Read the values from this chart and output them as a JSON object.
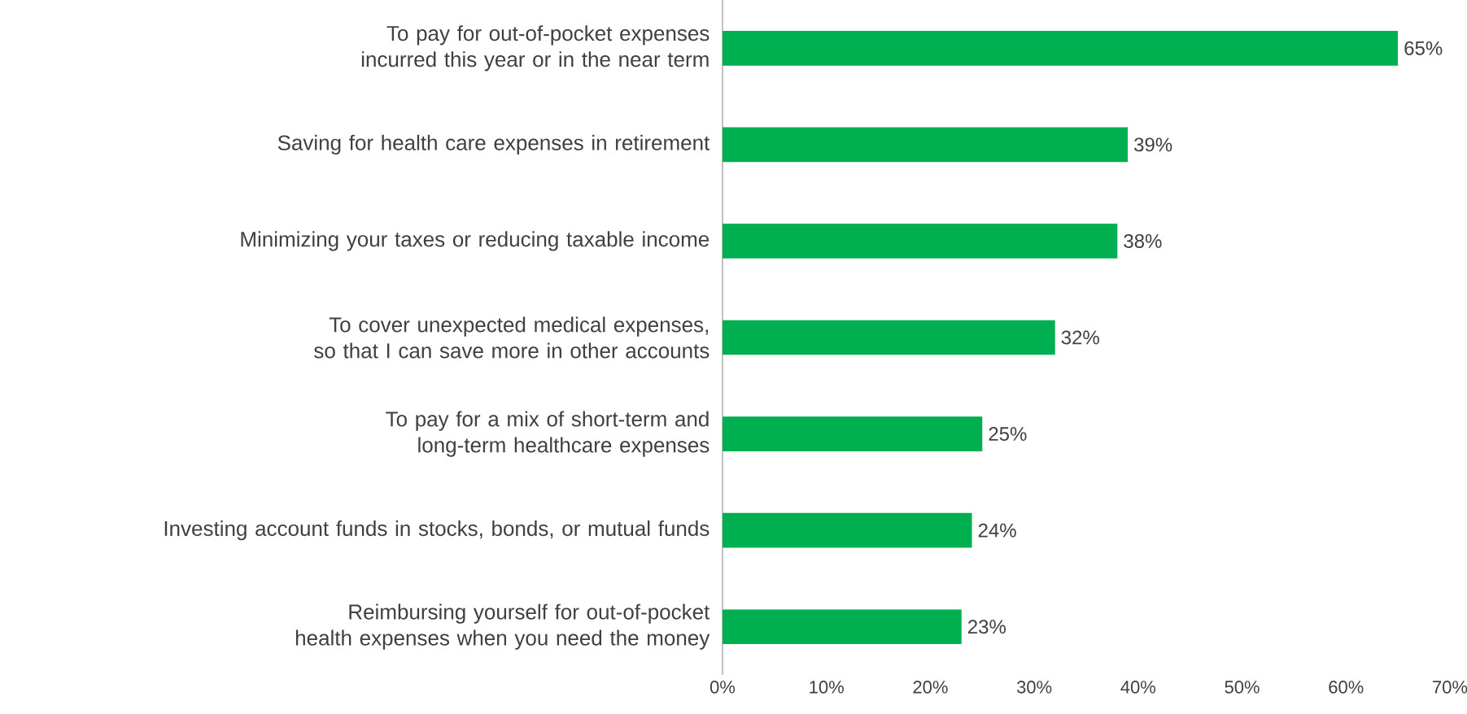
{
  "chart_data": {
    "type": "bar",
    "orientation": "horizontal",
    "categories": [
      "To pay for out-of-pocket expenses incurred this year or in the near term",
      "Saving for health care expenses in retirement",
      "Minimizing your taxes or reducing taxable income",
      "To cover unexpected medical expenses, so that I can save more in other accounts",
      "To pay for a mix of short-term and long-term healthcare expenses",
      "Investing account funds in stocks, bonds, or mutual funds",
      "Reimbursing yourself for out-of-pocket health expenses when you need the money"
    ],
    "values": [
      65,
      39,
      38,
      32,
      25,
      24,
      23
    ],
    "value_labels": [
      "65%",
      "39%",
      "38%",
      "32%",
      "25%",
      "24%",
      "23%"
    ],
    "color": "#00b050",
    "xlim": [
      0,
      70
    ],
    "xticks": [
      {
        "value": 0,
        "label": "0%"
      },
      {
        "value": 10,
        "label": "10%"
      },
      {
        "value": 20,
        "label": "20%"
      },
      {
        "value": 30,
        "label": "30%"
      },
      {
        "value": 40,
        "label": "40%"
      },
      {
        "value": 50,
        "label": "50%"
      },
      {
        "value": 60,
        "label": "60%"
      },
      {
        "value": 70,
        "label": "70%"
      }
    ]
  }
}
